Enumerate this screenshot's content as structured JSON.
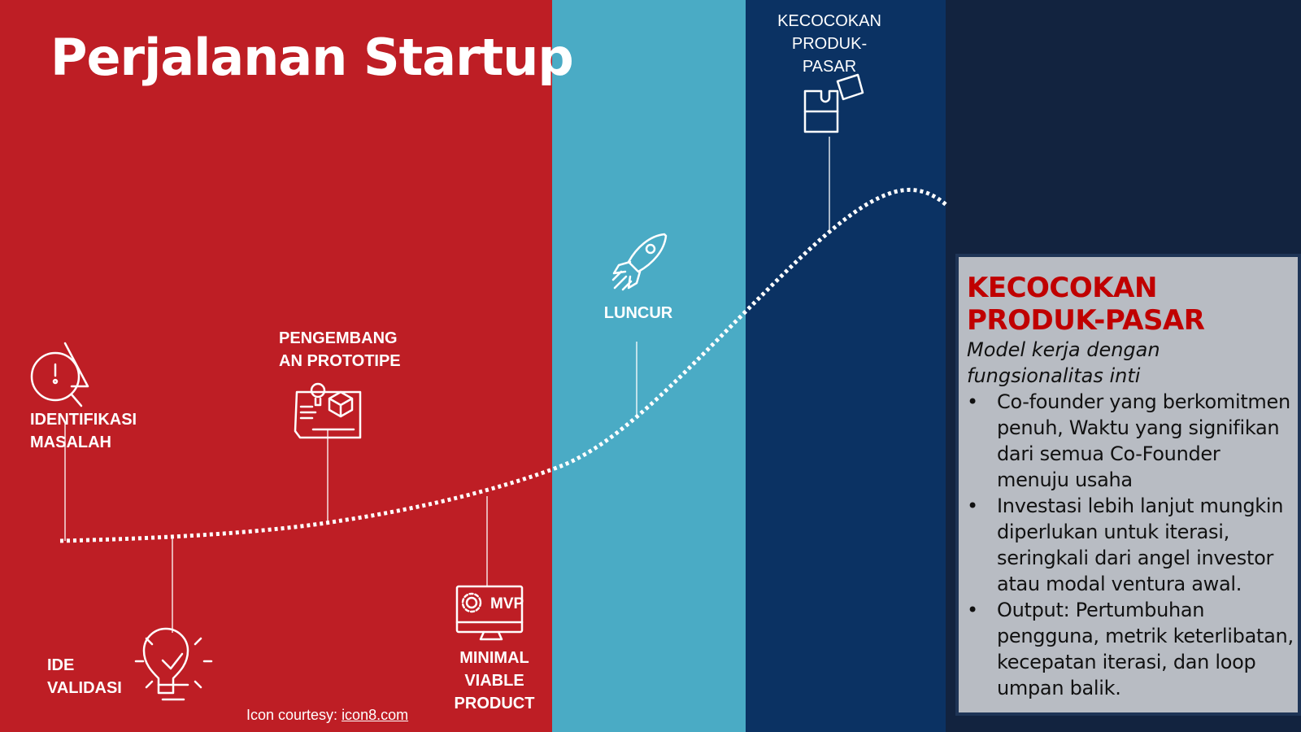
{
  "title": "Perjalanan Startup",
  "colors": {
    "red": "#be1e25",
    "teal": "#4aabc5",
    "navy": "#0b3263",
    "dark": "#12233f",
    "panel": "#b8bcc3",
    "accent": "#c00000"
  },
  "stages": [
    {
      "label": "IDENTIFIKASI MASALAH",
      "icon": "warning-search-icon"
    },
    {
      "label": "IDE VALIDASI",
      "icon": "lightbulb-check-icon"
    },
    {
      "label": "PENGEMBANGAN PROTOTIPE",
      "label_lines": [
        "PENGEMBANG",
        "AN PROTOTIPE"
      ],
      "icon": "blueprint-icon"
    },
    {
      "label": "MINIMAL VIABLE PRODUCT",
      "label_lines": [
        "MINIMAL",
        "VIABLE",
        "PRODUCT"
      ],
      "icon": "mvp-monitor-icon",
      "icon_text": "MVP"
    },
    {
      "label": "LUNCUR",
      "icon": "rocket-icon"
    },
    {
      "label_lines": [
        "KECOCOKAN",
        "PRODUK-",
        "PASAR"
      ],
      "icon": "puzzle-icon"
    }
  ],
  "credit": {
    "prefix": "Icon courtesy: ",
    "link": "icon8.com"
  },
  "panel": {
    "heading": "KECOCOKAN PRODUK-PASAR",
    "subtitle": "Model kerja dengan fungsionalitas inti",
    "bullets": [
      "Co-founder yang berkomitmen penuh, Waktu yang signifikan dari semua Co-Founder menuju usaha",
      "Investasi lebih lanjut mungkin diperlukan untuk iterasi, seringkali dari angel investor atau modal ventura awal.",
      "Output: Pertumbuhan pengguna, metrik keterlibatan, kecepatan iterasi, dan loop umpan balik."
    ]
  }
}
